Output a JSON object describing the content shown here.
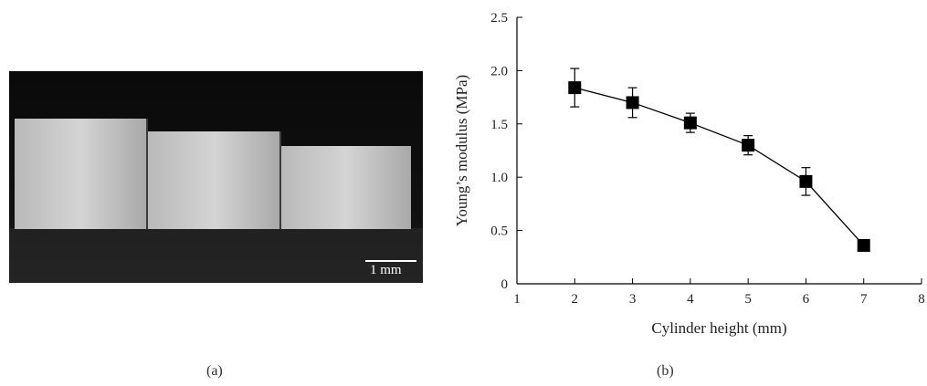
{
  "panels": {
    "a_label": "(a)",
    "b_label": "(b)"
  },
  "photo": {
    "scale_bar_text": "1 mm"
  },
  "chart_data": {
    "type": "scatter",
    "x": [
      2,
      3,
      4,
      5,
      6,
      7
    ],
    "y": [
      1.84,
      1.7,
      1.51,
      1.3,
      0.96,
      0.36
    ],
    "y_err": [
      0.18,
      0.14,
      0.09,
      0.09,
      0.13,
      0.03
    ],
    "xlabel": "Cylinder height (mm)",
    "ylabel": "Young’s modulus (MPa)",
    "xlim": [
      1,
      8
    ],
    "ylim": [
      0,
      2.5
    ],
    "xticks": [
      "1",
      "2",
      "3",
      "4",
      "5",
      "6",
      "7",
      "8"
    ],
    "yticks": [
      "0",
      "0.5",
      "1.0",
      "1.5",
      "2.0",
      "2.5"
    ],
    "marker": "square",
    "line": true,
    "grid": false,
    "color": "#000000"
  }
}
